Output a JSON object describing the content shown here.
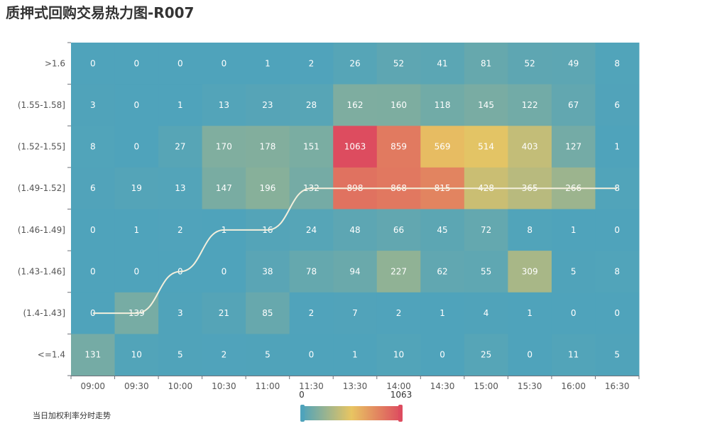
{
  "title": "质押式回购交易热力图-R007",
  "footnote": "当日加权利率分时走势",
  "chart_data": {
    "type": "heatmap",
    "x_categories": [
      "09:00",
      "09:30",
      "10:00",
      "10:30",
      "11:00",
      "11:30",
      "13:30",
      "14:00",
      "14:30",
      "15:00",
      "15:30",
      "16:00",
      "16:30"
    ],
    "y_categories": [
      ">1.6",
      "(1.55-1.58]",
      "(1.52-1.55]",
      "(1.49-1.52]",
      "(1.46-1.49]",
      "(1.43-1.46]",
      "(1.4-1.43]",
      "<=1.4"
    ],
    "values": [
      [
        0,
        0,
        0,
        0,
        1,
        2,
        26,
        52,
        41,
        81,
        52,
        49,
        8
      ],
      [
        3,
        0,
        1,
        13,
        23,
        28,
        162,
        160,
        118,
        145,
        122,
        67,
        6
      ],
      [
        8,
        0,
        27,
        170,
        178,
        151,
        1063,
        859,
        569,
        514,
        403,
        127,
        1
      ],
      [
        6,
        19,
        13,
        147,
        196,
        132,
        898,
        868,
        815,
        428,
        365,
        266,
        8
      ],
      [
        0,
        1,
        2,
        1,
        16,
        24,
        48,
        66,
        45,
        72,
        8,
        1,
        0
      ],
      [
        0,
        0,
        0,
        0,
        38,
        78,
        94,
        227,
        62,
        55,
        309,
        5,
        8
      ],
      [
        0,
        139,
        3,
        21,
        85,
        2,
        7,
        2,
        1,
        4,
        1,
        0,
        0
      ],
      [
        131,
        10,
        5,
        2,
        5,
        0,
        1,
        10,
        0,
        25,
        0,
        11,
        5
      ]
    ],
    "trend_line_rows": [
      "(1.4-1.43]",
      "(1.4-1.43]",
      "(1.43-1.46]",
      "(1.46-1.49]",
      "(1.46-1.49]",
      "(1.49-1.52]",
      "(1.49-1.52]",
      "(1.49-1.52]",
      "(1.49-1.52]",
      "(1.49-1.52]",
      "(1.49-1.52]",
      "(1.49-1.52]",
      "(1.49-1.52]"
    ],
    "visual_map": {
      "min": 0,
      "max": 1063,
      "min_label": "0",
      "max_label": "1063",
      "colors": [
        "#4fa3bb",
        "#e8c562",
        "#dd4c5f"
      ]
    },
    "line_color": "#f3efdc",
    "grid": false
  }
}
